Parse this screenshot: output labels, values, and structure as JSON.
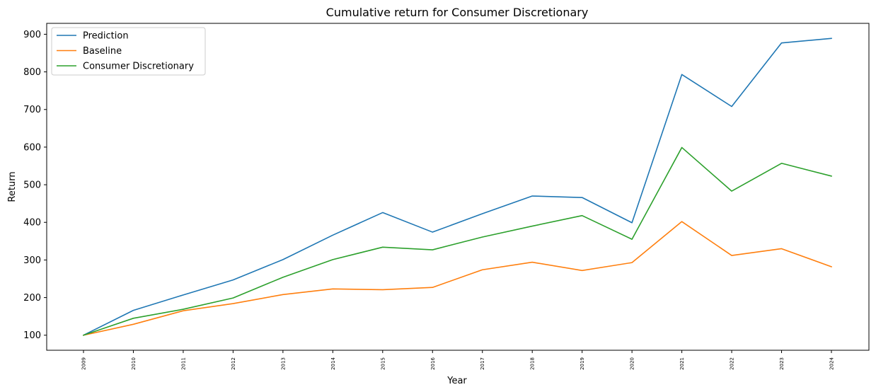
{
  "chart_data": {
    "type": "line",
    "title": "Cumulative return for Consumer Discretionary",
    "xlabel": "Year",
    "ylabel": "Return",
    "categories": [
      "2009",
      "2010",
      "2011",
      "2012",
      "2013",
      "2014",
      "2015",
      "2016",
      "2017",
      "2018",
      "2019",
      "2020",
      "2021",
      "2022",
      "2023",
      "2024"
    ],
    "yticks": [
      100,
      200,
      300,
      400,
      500,
      600,
      700,
      800,
      900
    ],
    "ylim": [
      60,
      929
    ],
    "grid": false,
    "legend_position": "top-left",
    "series": [
      {
        "name": "Prediction",
        "color": "#1f77b4",
        "values": [
          100,
          166,
          207,
          247,
          301,
          366,
          426,
          374,
          423,
          470,
          466,
          399,
          793,
          708,
          877,
          889
        ]
      },
      {
        "name": "Baseline",
        "color": "#ff7f0e",
        "values": [
          100,
          129,
          165,
          184,
          208,
          223,
          221,
          227,
          274,
          294,
          272,
          293,
          402,
          312,
          330,
          282
        ]
      },
      {
        "name": "Consumer Discretionary",
        "color": "#2ca02c",
        "values": [
          100,
          145,
          169,
          199,
          254,
          301,
          334,
          327,
          361,
          390,
          418,
          355,
          599,
          483,
          557,
          523
        ]
      }
    ]
  }
}
